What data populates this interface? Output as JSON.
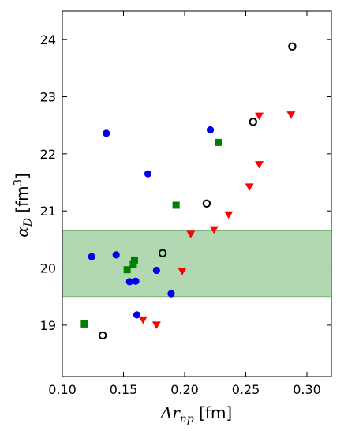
{
  "chart_data": {
    "type": "scatter",
    "xlabel": "Δr_np  [fm]",
    "ylabel": "α_D  [fm³]",
    "xlim": [
      0.1,
      0.32
    ],
    "ylim": [
      18.1,
      24.5
    ],
    "x_ticks": [
      0.1,
      0.15,
      0.2,
      0.25,
      0.3
    ],
    "x_tick_labels": [
      "0.10",
      "0.15",
      "0.20",
      "0.25",
      "0.30"
    ],
    "y_ticks": [
      19,
      20,
      21,
      22,
      23,
      24
    ],
    "y_tick_labels": [
      "19",
      "20",
      "21",
      "22",
      "23",
      "24"
    ],
    "band": {
      "y0": 19.5,
      "y1": 20.65,
      "color": "#b2d8b2",
      "edge": "#7fb07f"
    },
    "series": [
      {
        "marker": "circle",
        "color": "#0000ee",
        "points": [
          [
            0.136,
            22.36
          ],
          [
            0.221,
            22.42
          ],
          [
            0.17,
            21.65
          ],
          [
            0.124,
            20.2
          ],
          [
            0.144,
            20.23
          ],
          [
            0.155,
            19.76
          ],
          [
            0.16,
            19.77
          ],
          [
            0.177,
            19.96
          ],
          [
            0.189,
            19.55
          ],
          [
            0.161,
            19.18
          ]
        ]
      },
      {
        "marker": "open-circle",
        "color": "#000000",
        "points": [
          [
            0.288,
            23.88
          ],
          [
            0.256,
            22.56
          ],
          [
            0.218,
            21.13
          ],
          [
            0.182,
            20.26
          ],
          [
            0.133,
            18.82
          ]
        ]
      },
      {
        "marker": "square",
        "color": "#008000",
        "points": [
          [
            0.228,
            22.2
          ],
          [
            0.193,
            21.1
          ],
          [
            0.159,
            20.14
          ],
          [
            0.158,
            20.06
          ],
          [
            0.153,
            19.97
          ],
          [
            0.118,
            19.02
          ]
        ]
      },
      {
        "marker": "triangle-down",
        "color": "#ff0000",
        "points": [
          [
            0.261,
            22.66
          ],
          [
            0.287,
            22.68
          ],
          [
            0.261,
            21.81
          ],
          [
            0.253,
            21.42
          ],
          [
            0.236,
            20.93
          ],
          [
            0.224,
            20.67
          ],
          [
            0.205,
            20.59
          ],
          [
            0.198,
            19.94
          ],
          [
            0.166,
            19.09
          ],
          [
            0.177,
            19.0
          ]
        ]
      }
    ]
  }
}
